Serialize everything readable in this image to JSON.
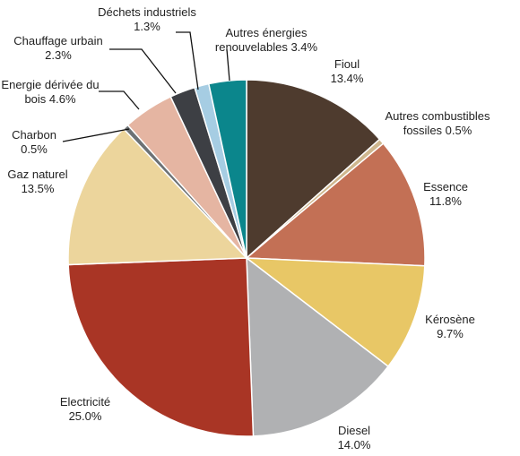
{
  "chart_data": {
    "type": "pie",
    "title": "",
    "start_angle_deg": 0,
    "direction": "clockwise",
    "slices": [
      {
        "label_lines": [
          "Fioul",
          "13.4%"
        ],
        "name": "Fioul",
        "value": 13.4,
        "color": "#4e3b2e"
      },
      {
        "label_lines": [
          "Autres combustibles",
          "fossiles 0.5%"
        ],
        "name": "Autres combustibles fossiles",
        "value": 0.5,
        "color": "#cfb78e"
      },
      {
        "label_lines": [
          "Essence",
          "11.8%"
        ],
        "name": "Essence",
        "value": 11.8,
        "color": "#c37055"
      },
      {
        "label_lines": [
          "Kérosène",
          "9.7%"
        ],
        "name": "Kérosène",
        "value": 9.7,
        "color": "#e8c766"
      },
      {
        "label_lines": [
          "Diesel",
          "14.0%"
        ],
        "name": "Diesel",
        "value": 14.0,
        "color": "#b0b1b3"
      },
      {
        "label_lines": [
          "Electricité",
          "25.0%"
        ],
        "name": "Electricité",
        "value": 25.0,
        "color": "#a93525"
      },
      {
        "label_lines": [
          "Gaz naturel",
          "13.5%"
        ],
        "name": "Gaz naturel",
        "value": 13.5,
        "color": "#ecd59c"
      },
      {
        "label_lines": [
          "Charbon",
          "0.5%"
        ],
        "name": "Charbon",
        "value": 0.5,
        "color": "#6d7275"
      },
      {
        "label_lines": [
          "Energie dérivée du",
          "bois 4.6%"
        ],
        "name": "Energie dérivée du bois",
        "value": 4.6,
        "color": "#e5b5a2"
      },
      {
        "label_lines": [
          "Chauffage urbain",
          "2.3%"
        ],
        "name": "Chauffage urbain",
        "value": 2.3,
        "color": "#3d3f44"
      },
      {
        "label_lines": [
          "Déchets industriels",
          "1.3%"
        ],
        "name": "Déchets industriels",
        "value": 1.3,
        "color": "#a6cde3"
      },
      {
        "label_lines": [
          "Autres énergies",
          "renouvelables 3.4%"
        ],
        "name": "Autres énergies renouvelables",
        "value": 3.4,
        "color": "#0b868c"
      }
    ]
  }
}
